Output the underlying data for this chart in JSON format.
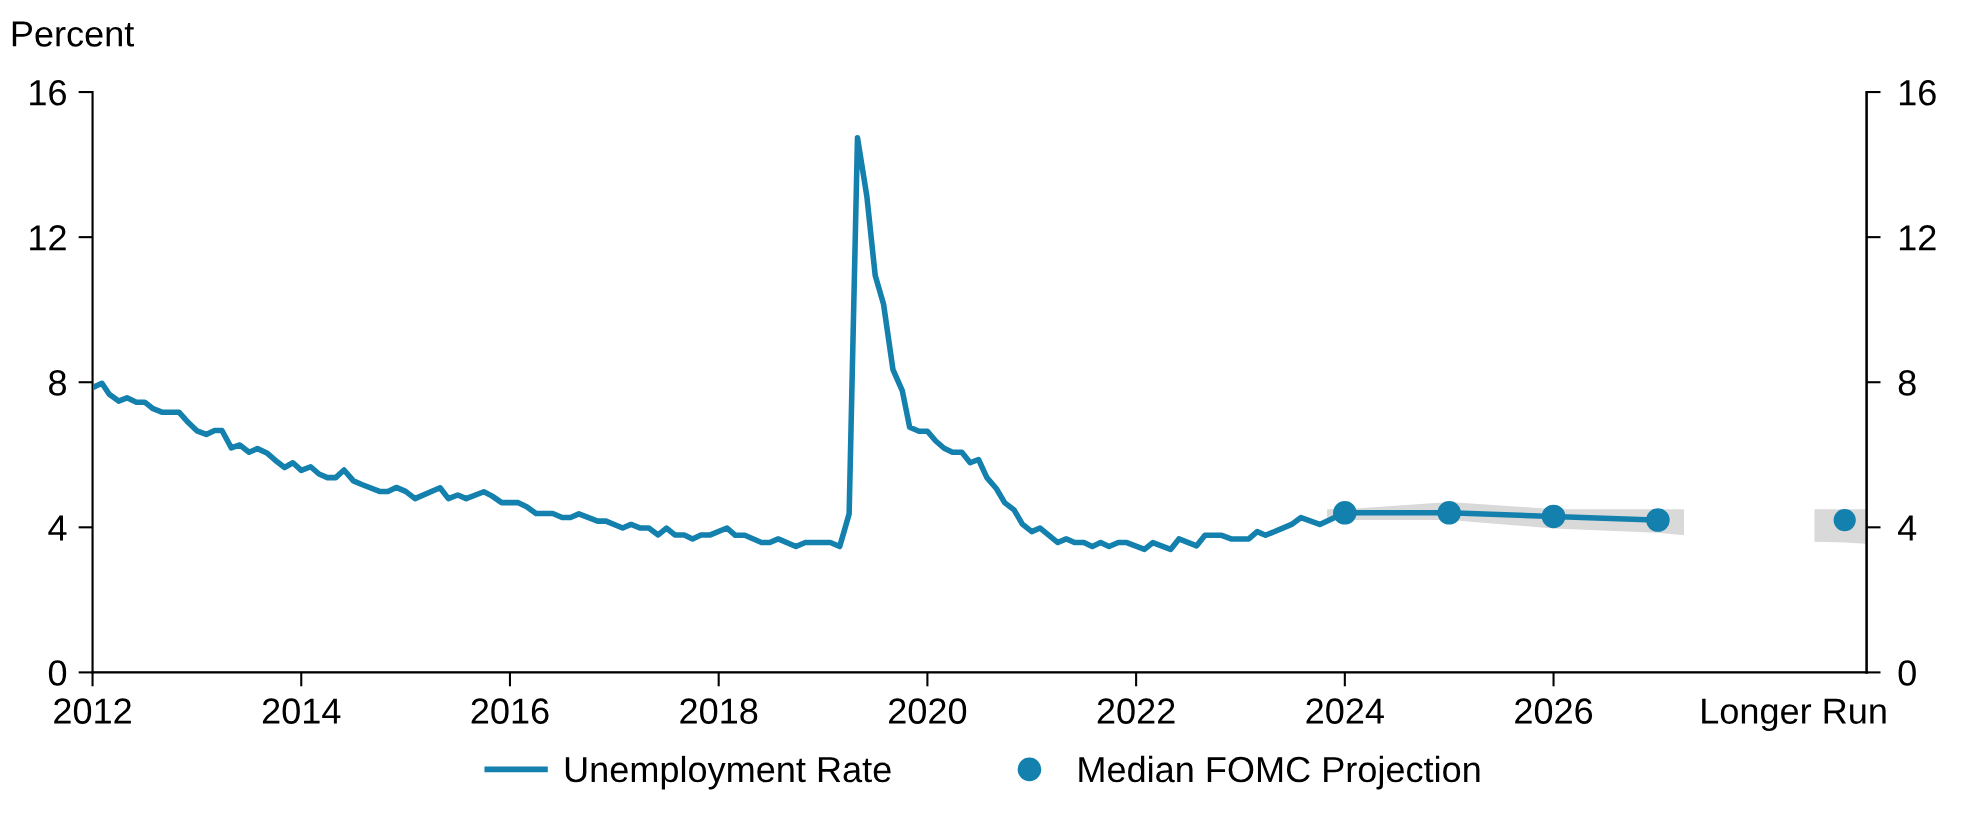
{
  "chart_data": {
    "type": "line",
    "ylabel": "Percent",
    "xlim": [
      2012,
      2029.0
    ],
    "xticks": [
      2012,
      2014,
      2016,
      2018,
      2020,
      2022,
      2024,
      2026,
      {
        "value": 2028.3,
        "label": "Longer Run"
      }
    ],
    "ylim": [
      0,
      16
    ],
    "yticks": [
      0,
      4,
      8,
      12,
      16
    ],
    "y2lim": [
      0,
      16
    ],
    "y2ticks": [
      0,
      4,
      8,
      12,
      16
    ],
    "grid": false,
    "legend": "bottom",
    "series": [
      {
        "name": "Unemployment Rate",
        "color": "#1380ad",
        "marker": "none",
        "x": [
          2012.0,
          2012.09,
          2012.16,
          2012.25,
          2012.33,
          2012.42,
          2012.5,
          2012.58,
          2012.67,
          2012.83,
          2012.92,
          2013.0,
          2013.09,
          2013.17,
          2013.24,
          2013.33,
          2013.41,
          2013.5,
          2013.58,
          2013.67,
          2013.75,
          2013.84,
          2013.92,
          2014.0,
          2014.09,
          2014.17,
          2014.25,
          2014.33,
          2014.41,
          2014.5,
          2014.58,
          2014.75,
          2014.83,
          2014.91,
          2015.0,
          2015.09,
          2015.33,
          2015.41,
          2015.5,
          2015.58,
          2015.75,
          2015.83,
          2015.92,
          2016.08,
          2016.16,
          2016.25,
          2016.41,
          2016.5,
          2016.58,
          2016.66,
          2016.84,
          2016.92,
          2017.08,
          2017.16,
          2017.25,
          2017.33,
          2017.42,
          2017.5,
          2017.58,
          2017.67,
          2017.75,
          2017.83,
          2017.92,
          2018.08,
          2018.16,
          2018.25,
          2018.41,
          2018.49,
          2018.57,
          2018.74,
          2018.83,
          2019.07,
          2019.16,
          2019.25,
          2019.33,
          2019.42,
          2019.5,
          2019.58,
          2019.67,
          2019.76,
          2019.83,
          2019.92,
          2020.0,
          2020.08,
          2020.16,
          2020.24,
          2020.33,
          2020.41,
          2020.49,
          2020.57,
          2020.66,
          2020.74,
          2020.83,
          2020.91,
          2021.0,
          2021.08,
          2021.25,
          2021.33,
          2021.41,
          2021.5,
          2021.58,
          2021.66,
          2021.74,
          2021.83,
          2021.91,
          2022.08,
          2022.16,
          2022.33,
          2022.41,
          2022.58,
          2022.66,
          2022.82,
          2022.91,
          2023.08,
          2023.16,
          2023.24,
          2023.49,
          2023.58,
          2023.76,
          2024.0
        ],
        "values": [
          7.85,
          7.97,
          7.67,
          7.48,
          7.57,
          7.45,
          7.45,
          7.27,
          7.17,
          7.17,
          6.88,
          6.66,
          6.56,
          6.67,
          6.67,
          6.19,
          6.27,
          6.07,
          6.17,
          6.05,
          5.85,
          5.65,
          5.78,
          5.57,
          5.67,
          5.47,
          5.37,
          5.37,
          5.58,
          5.28,
          5.18,
          4.99,
          4.99,
          5.1,
          4.99,
          4.79,
          5.09,
          4.79,
          4.89,
          4.79,
          4.98,
          4.86,
          4.68,
          4.68,
          4.57,
          4.38,
          4.38,
          4.27,
          4.27,
          4.37,
          4.17,
          4.17,
          3.98,
          4.08,
          3.98,
          3.98,
          3.79,
          3.98,
          3.79,
          3.79,
          3.68,
          3.79,
          3.79,
          3.98,
          3.78,
          3.78,
          3.58,
          3.58,
          3.68,
          3.47,
          3.58,
          3.58,
          3.47,
          4.37,
          14.74,
          13.12,
          10.94,
          10.15,
          8.35,
          7.76,
          6.76,
          6.65,
          6.65,
          6.38,
          6.18,
          6.07,
          6.07,
          5.78,
          5.87,
          5.37,
          5.07,
          4.68,
          4.48,
          4.09,
          3.88,
          3.98,
          3.58,
          3.68,
          3.58,
          3.58,
          3.47,
          3.58,
          3.47,
          3.58,
          3.58,
          3.39,
          3.58,
          3.39,
          3.68,
          3.49,
          3.78,
          3.78,
          3.68,
          3.68,
          3.88,
          3.78,
          4.08,
          4.27,
          4.08,
          4.4
        ]
      },
      {
        "name": "Median FOMC Projection",
        "color": "#1380ad",
        "marker": "circle",
        "x": [
          2023.83,
          2024,
          2025,
          2026,
          2027,
          2027.25
        ],
        "values": [
          null,
          4.4,
          4.4,
          4.3,
          4.2,
          null
        ],
        "lower": [
          4.2,
          4.2,
          4.2,
          3.97,
          3.85,
          3.78
        ],
        "upper": [
          4.5,
          4.5,
          4.7,
          4.5,
          4.5,
          4.5
        ]
      },
      {
        "type": "scatter",
        "color": "#1380ad",
        "marker": "circle",
        "x": [
          2028.5,
          2028.79,
          2028.99
        ],
        "values": [
          null,
          4.2,
          null
        ],
        "lower": [
          3.6,
          3.58,
          3.55
        ],
        "upper": [
          4.5,
          4.5,
          4.5
        ]
      }
    ]
  }
}
